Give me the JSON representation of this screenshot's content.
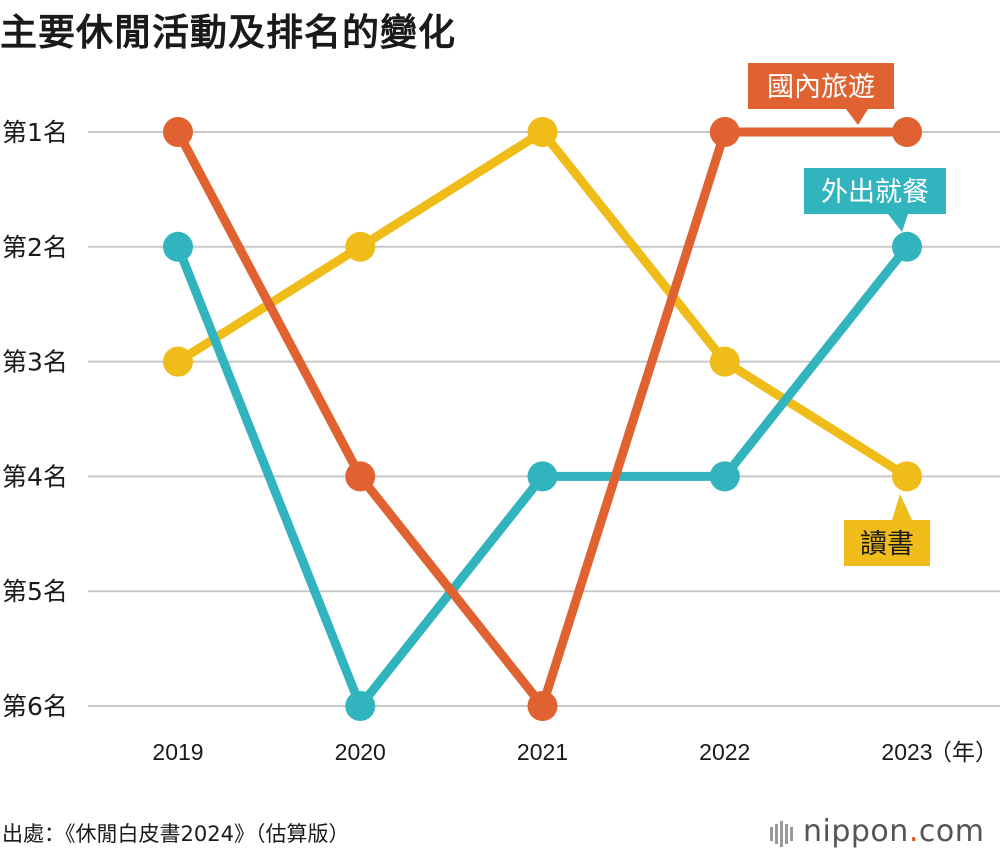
{
  "title": "主要休閒活動及排名的變化",
  "source": "出處：《休閒白皮書2024》（估算版）",
  "brand": {
    "name": "nippon",
    "dot": ".",
    "tld": "com"
  },
  "chart_data": {
    "type": "line",
    "title": "主要休閒活動及排名的變化",
    "x": [
      "2019",
      "2020",
      "2021",
      "2022",
      "2023"
    ],
    "x_unit": "（年）",
    "y_ticks": [
      "第1名",
      "第2名",
      "第3名",
      "第4名",
      "第5名",
      "第6名"
    ],
    "ylim": [
      1,
      6
    ],
    "y_inverted": true,
    "grid": true,
    "series": [
      {
        "name": "讀書",
        "values": [
          3,
          2,
          1,
          3,
          4
        ],
        "color": "#f0bc19"
      },
      {
        "name": "外出就餐",
        "values": [
          2,
          6,
          4,
          4,
          2
        ],
        "color": "#32b4bf"
      },
      {
        "name": "國內旅遊",
        "values": [
          1,
          4,
          6,
          1,
          1
        ],
        "color": "#df6230"
      }
    ]
  }
}
